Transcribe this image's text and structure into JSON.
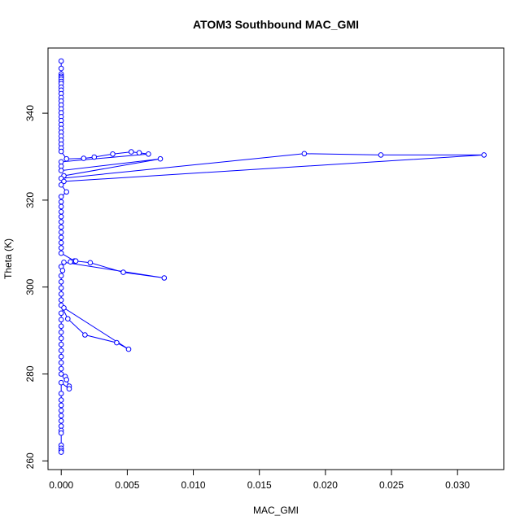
{
  "chart_data": {
    "type": "line",
    "title": "ATOM3 Southbound MAC_GMI",
    "xlabel": "MAC_GMI",
    "ylabel": "Theta (K)",
    "xlim": [
      -0.001,
      0.0335
    ],
    "ylim": [
      258,
      355
    ],
    "x_ticks": [
      0.0,
      0.005,
      0.01,
      0.015,
      0.02,
      0.025,
      0.03
    ],
    "x_tick_labels": [
      "0.000",
      "0.005",
      "0.010",
      "0.015",
      "0.020",
      "0.025",
      "0.030"
    ],
    "y_ticks": [
      260,
      280,
      300,
      320,
      340
    ],
    "y_tick_labels": [
      "260",
      "280",
      "300",
      "320",
      "340"
    ],
    "grid": false,
    "series_color": "#0000ff",
    "series": [
      {
        "marker": "open-circle",
        "points": [
          [
            0.0,
            352.0
          ],
          [
            0.0,
            350.3
          ],
          [
            0.0,
            349.0
          ],
          [
            0.0,
            348.5
          ],
          [
            0.0,
            348.2
          ],
          [
            0.0,
            347.8
          ],
          [
            0.0,
            347.3
          ],
          [
            0.0,
            346.8
          ],
          [
            0.0,
            346.0
          ],
          [
            0.0,
            345.3
          ],
          [
            0.0,
            344.5
          ],
          [
            0.0,
            343.6
          ],
          [
            0.0,
            342.8
          ],
          [
            0.0,
            341.9
          ],
          [
            0.0,
            341.0
          ],
          [
            0.0,
            340.1
          ],
          [
            0.0,
            339.2
          ],
          [
            0.0,
            338.3
          ],
          [
            0.0,
            337.4
          ],
          [
            0.0,
            336.5
          ],
          [
            0.0,
            335.6
          ],
          [
            0.0,
            334.7
          ],
          [
            0.0,
            333.8
          ],
          [
            0.0,
            332.9
          ],
          [
            0.0,
            332.0
          ],
          [
            0.0,
            331.2
          ],
          [
            0.0004,
            329.5
          ],
          [
            0.0017,
            329.6
          ],
          [
            0.0025,
            329.9
          ],
          [
            0.0039,
            330.6
          ],
          [
            0.0053,
            331.1
          ],
          [
            0.0059,
            330.9
          ],
          [
            0.0066,
            330.6
          ],
          [
            0.0,
            328.8
          ],
          [
            0.0,
            327.8
          ],
          [
            0.0,
            326.8
          ],
          [
            0.0075,
            329.5
          ],
          [
            0.0002,
            325.6
          ],
          [
            0.0,
            325.0
          ],
          [
            0.0184,
            330.7
          ],
          [
            0.0242,
            330.4
          ],
          [
            0.032,
            330.4
          ],
          [
            0.0002,
            324.3
          ],
          [
            0.0,
            323.5
          ],
          [
            0.0004,
            321.9
          ],
          [
            0.0,
            320.8
          ],
          [
            0.0,
            319.6
          ],
          [
            0.0,
            318.5
          ],
          [
            0.0,
            317.3
          ],
          [
            0.0,
            316.2
          ],
          [
            0.0,
            315.0
          ],
          [
            0.0,
            313.8
          ],
          [
            0.0,
            312.6
          ],
          [
            0.0,
            311.4
          ],
          [
            0.0,
            310.2
          ],
          [
            0.0,
            309.0
          ],
          [
            0.0,
            307.8
          ],
          [
            0.001,
            306.0
          ],
          [
            0.0007,
            305.8
          ],
          [
            0.0011,
            306.0
          ],
          [
            0.0022,
            305.6
          ],
          [
            0.0047,
            303.4
          ],
          [
            0.0078,
            302.1
          ],
          [
            0.0002,
            305.7
          ],
          [
            0.0,
            304.7
          ],
          [
            0.0001,
            303.8
          ],
          [
            0.0,
            302.6
          ],
          [
            0.0,
            301.2
          ],
          [
            0.0,
            299.8
          ],
          [
            0.0,
            298.4
          ],
          [
            0.0,
            297.0
          ],
          [
            0.0,
            295.8
          ],
          [
            0.0005,
            292.7
          ],
          [
            0.0018,
            289.0
          ],
          [
            0.0042,
            287.2
          ],
          [
            0.0051,
            285.7
          ],
          [
            0.0002,
            295.2
          ],
          [
            0.0,
            294.0
          ],
          [
            0.0,
            292.5
          ],
          [
            0.0,
            291.0
          ],
          [
            0.0,
            289.6
          ],
          [
            0.0,
            288.2
          ],
          [
            0.0,
            286.8
          ],
          [
            0.0,
            285.4
          ],
          [
            0.0,
            284.0
          ],
          [
            0.0,
            282.6
          ],
          [
            0.0,
            281.2
          ],
          [
            0.0,
            280.0
          ],
          [
            0.0003,
            279.4
          ],
          [
            0.0004,
            278.7
          ],
          [
            0.0006,
            277.2
          ],
          [
            0.0006,
            276.6
          ],
          [
            0.0,
            278.0
          ],
          [
            0.0,
            275.5
          ],
          [
            0.0,
            274.0
          ],
          [
            0.0,
            272.8
          ],
          [
            0.0,
            271.6
          ],
          [
            0.0,
            270.4
          ],
          [
            0.0,
            269.2
          ],
          [
            0.0,
            268.0
          ],
          [
            0.0,
            267.0
          ],
          [
            0.0,
            266.4
          ],
          [
            0.0,
            263.6
          ],
          [
            0.0,
            262.9
          ],
          [
            0.0,
            262.4
          ],
          [
            0.0,
            262.0
          ]
        ]
      }
    ]
  }
}
